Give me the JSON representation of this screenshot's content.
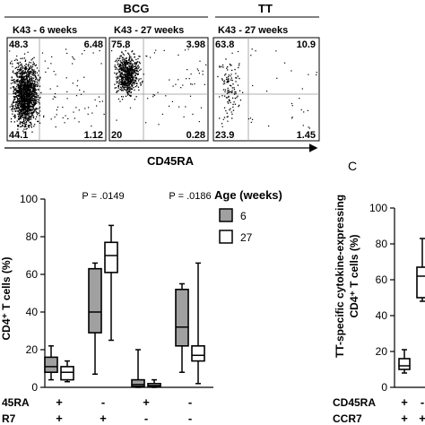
{
  "figure": {
    "top_groups": [
      {
        "label": "BCG"
      },
      {
        "label": "TT"
      }
    ],
    "flow_axis_label": "CD45RA",
    "panel_c_label": "C"
  },
  "chart_data": [
    {
      "type": "scatter",
      "subtype": "flow-cytometry-quadrant",
      "title": "K43 - 6 weeks",
      "xlabel": "CD45RA",
      "quadrants": {
        "upper_left": "48.3",
        "upper_right": "6.48",
        "lower_left": "44.1",
        "lower_right": "1.12"
      }
    },
    {
      "type": "scatter",
      "subtype": "flow-cytometry-quadrant",
      "title": "K43 - 27 weeks",
      "xlabel": "CD45RA",
      "quadrants": {
        "upper_left": "75.8",
        "upper_right": "3.98",
        "lower_left": "20",
        "lower_right": "0.28"
      }
    },
    {
      "type": "scatter",
      "subtype": "flow-cytometry-quadrant",
      "title": "K43 - 27 weeks",
      "xlabel": "CD45RA",
      "quadrants": {
        "upper_left": "63.8",
        "upper_right": "10.9",
        "lower_left": "23.9",
        "lower_right": "1.45"
      }
    },
    {
      "type": "boxplot",
      "ylabel_visible": "CD4⁺ T cells (%)",
      "ylim": [
        0,
        100
      ],
      "yticks": [
        "0",
        "20",
        "40",
        "60",
        "80",
        "100"
      ],
      "legend": {
        "title": "Age (weeks)",
        "placement": "top-right",
        "entries": [
          {
            "name": "6",
            "color": "#a0a0a0"
          },
          {
            "name": "27",
            "color": "#ffffff"
          }
        ]
      },
      "row_labels": [
        "45RA",
        "R7"
      ],
      "annotations": [
        {
          "text": "P = .0149",
          "group": 1
        },
        {
          "text": "P = .0186",
          "group": 3
        }
      ],
      "groups": [
        {
          "cd45ra": "+",
          "ccr7": "+"
        },
        {
          "cd45ra": "-",
          "ccr7": "+"
        },
        {
          "cd45ra": "+",
          "ccr7": "-"
        },
        {
          "cd45ra": "-",
          "ccr7": "-"
        }
      ],
      "series": [
        {
          "name": "6",
          "color": "#a0a0a0",
          "boxes": [
            {
              "min": 4,
              "q1": 8,
              "median": 11,
              "q3": 16,
              "max": 22
            },
            {
              "min": 7,
              "q1": 29,
              "median": 40,
              "q3": 63,
              "max": 66
            },
            {
              "min": 0,
              "q1": 0.5,
              "median": 1.5,
              "q3": 4,
              "max": 20
            },
            {
              "min": 8,
              "q1": 22,
              "median": 32,
              "q3": 52,
              "max": 55
            }
          ]
        },
        {
          "name": "27",
          "color": "#ffffff",
          "boxes": [
            {
              "min": 3,
              "q1": 4,
              "median": 8,
              "q3": 11,
              "max": 14
            },
            {
              "min": 25,
              "q1": 61,
              "median": 70,
              "q3": 77,
              "max": 86
            },
            {
              "min": 0,
              "q1": 0.3,
              "median": 1,
              "q3": 2,
              "max": 4
            },
            {
              "min": 2,
              "q1": 14,
              "median": 17,
              "q3": 22,
              "max": 66
            }
          ]
        }
      ]
    },
    {
      "type": "boxplot",
      "panel": "C",
      "ylabel": "TT-specific cytokine-expressing CD4⁺ T cells (%)",
      "ylabel_lines": [
        "TT-specific cytokine-expressing",
        "CD4⁺ T cells (%)"
      ],
      "ylim": [
        0,
        100
      ],
      "yticks": [
        "0",
        "20",
        "40",
        "60",
        "80",
        "100"
      ],
      "row_labels": [
        "CD45RA",
        "CCR7"
      ],
      "groups": [
        {
          "cd45ra": "+",
          "ccr7": "+"
        },
        {
          "cd45ra": "-",
          "ccr7": "+"
        }
      ],
      "series": [
        {
          "name": "27",
          "color": "#ffffff",
          "boxes": [
            {
              "min": 8,
              "q1": 10,
              "median": 12,
              "q3": 16,
              "max": 21
            },
            {
              "min": 48,
              "q1": 50,
              "median": 62,
              "q3": 67,
              "max": 83
            }
          ]
        }
      ]
    }
  ]
}
